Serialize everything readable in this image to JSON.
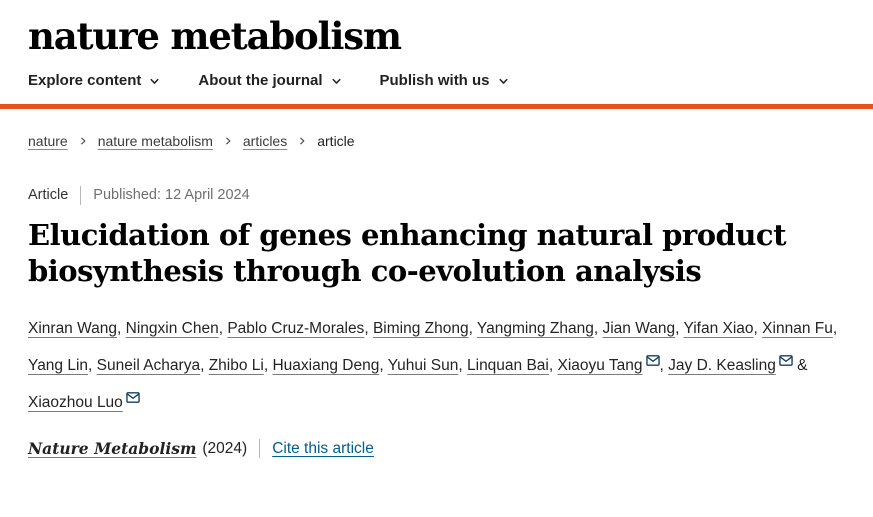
{
  "colors": {
    "accent": "#e8501e",
    "link_blue": "#025e8d",
    "text": "#222222"
  },
  "icons": {
    "nav_chevron": "chevron-down-icon",
    "breadcrumb_separator": "chevron-right-icon",
    "email": "email-icon"
  },
  "header": {
    "logo": "nature metabolism",
    "nav_items": [
      "Explore content",
      "About the journal",
      "Publish with us"
    ]
  },
  "breadcrumb": [
    "nature",
    "nature metabolism",
    "articles",
    "article"
  ],
  "article": {
    "type_label": "Article",
    "published": "Published: 12 April 2024",
    "title": "Elucidation of genes enhancing natural product biosynthesis through co-evolution analysis",
    "authors": [
      {
        "name": "Xinran Wang"
      },
      {
        "name": "Ningxin Chen"
      },
      {
        "name": "Pablo Cruz-Morales"
      },
      {
        "name": "Biming Zhong"
      },
      {
        "name": "Yangming Zhang"
      },
      {
        "name": "Jian Wang"
      },
      {
        "name": "Yifan Xiao"
      },
      {
        "name": "Xinnan Fu"
      },
      {
        "name": "Yang Lin"
      },
      {
        "name": "Suneil Acharya"
      },
      {
        "name": "Zhibo Li"
      },
      {
        "name": "Huaxiang Deng"
      },
      {
        "name": "Yuhui Sun"
      },
      {
        "name": "Linquan Bai"
      },
      {
        "name": "Xiaoyu Tang",
        "email": true
      },
      {
        "name": "Jay D. Keasling",
        "email": true
      },
      {
        "name": "Xiaozhou Luo",
        "email": true
      }
    ],
    "author_last_separator": "&",
    "citation": {
      "journal": "Nature Metabolism",
      "year": "(2024)",
      "cite_link": "Cite this article"
    }
  }
}
